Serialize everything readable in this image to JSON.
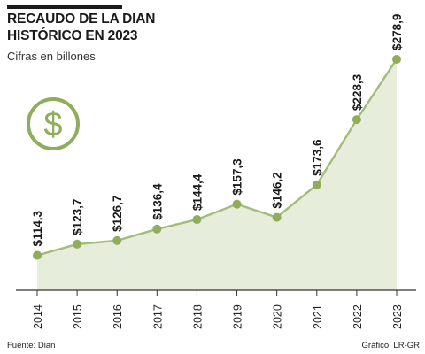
{
  "header": {
    "title": "RECAUDO DE LA DIAN\nHISTÓRICO EN 2023",
    "subtitle": "Cifras en billones"
  },
  "footer": {
    "source": "Fuente: Dian",
    "credit": "Gráfico: LR-GR"
  },
  "icon": "dollar-coin-icon",
  "colors": {
    "line": "#a3bc78",
    "area": "#e7eddb",
    "marker": "#8fad5c",
    "icon": "#8fad5c",
    "text": "#1a1a1a"
  },
  "chart_data": {
    "type": "area",
    "title": "RECAUDO DE LA DIAN HISTÓRICO EN 2023",
    "subtitle": "Cifras en billones",
    "categories": [
      "2014",
      "2015",
      "2016",
      "2017",
      "2018",
      "2019",
      "2020",
      "2021",
      "2022",
      "2023"
    ],
    "values": [
      114.3,
      123.7,
      126.7,
      136.4,
      144.4,
      157.3,
      146.2,
      173.6,
      228.3,
      278.9
    ],
    "value_labels": [
      "$114,3",
      "$123,7",
      "$126,7",
      "$136,4",
      "$144,4",
      "$157,3",
      "$146,2",
      "$173,6",
      "$228,3",
      "$278,9"
    ],
    "xlabel": "",
    "ylabel": "",
    "ylim": [
      85,
      290
    ],
    "grid": false,
    "legend": "none"
  }
}
